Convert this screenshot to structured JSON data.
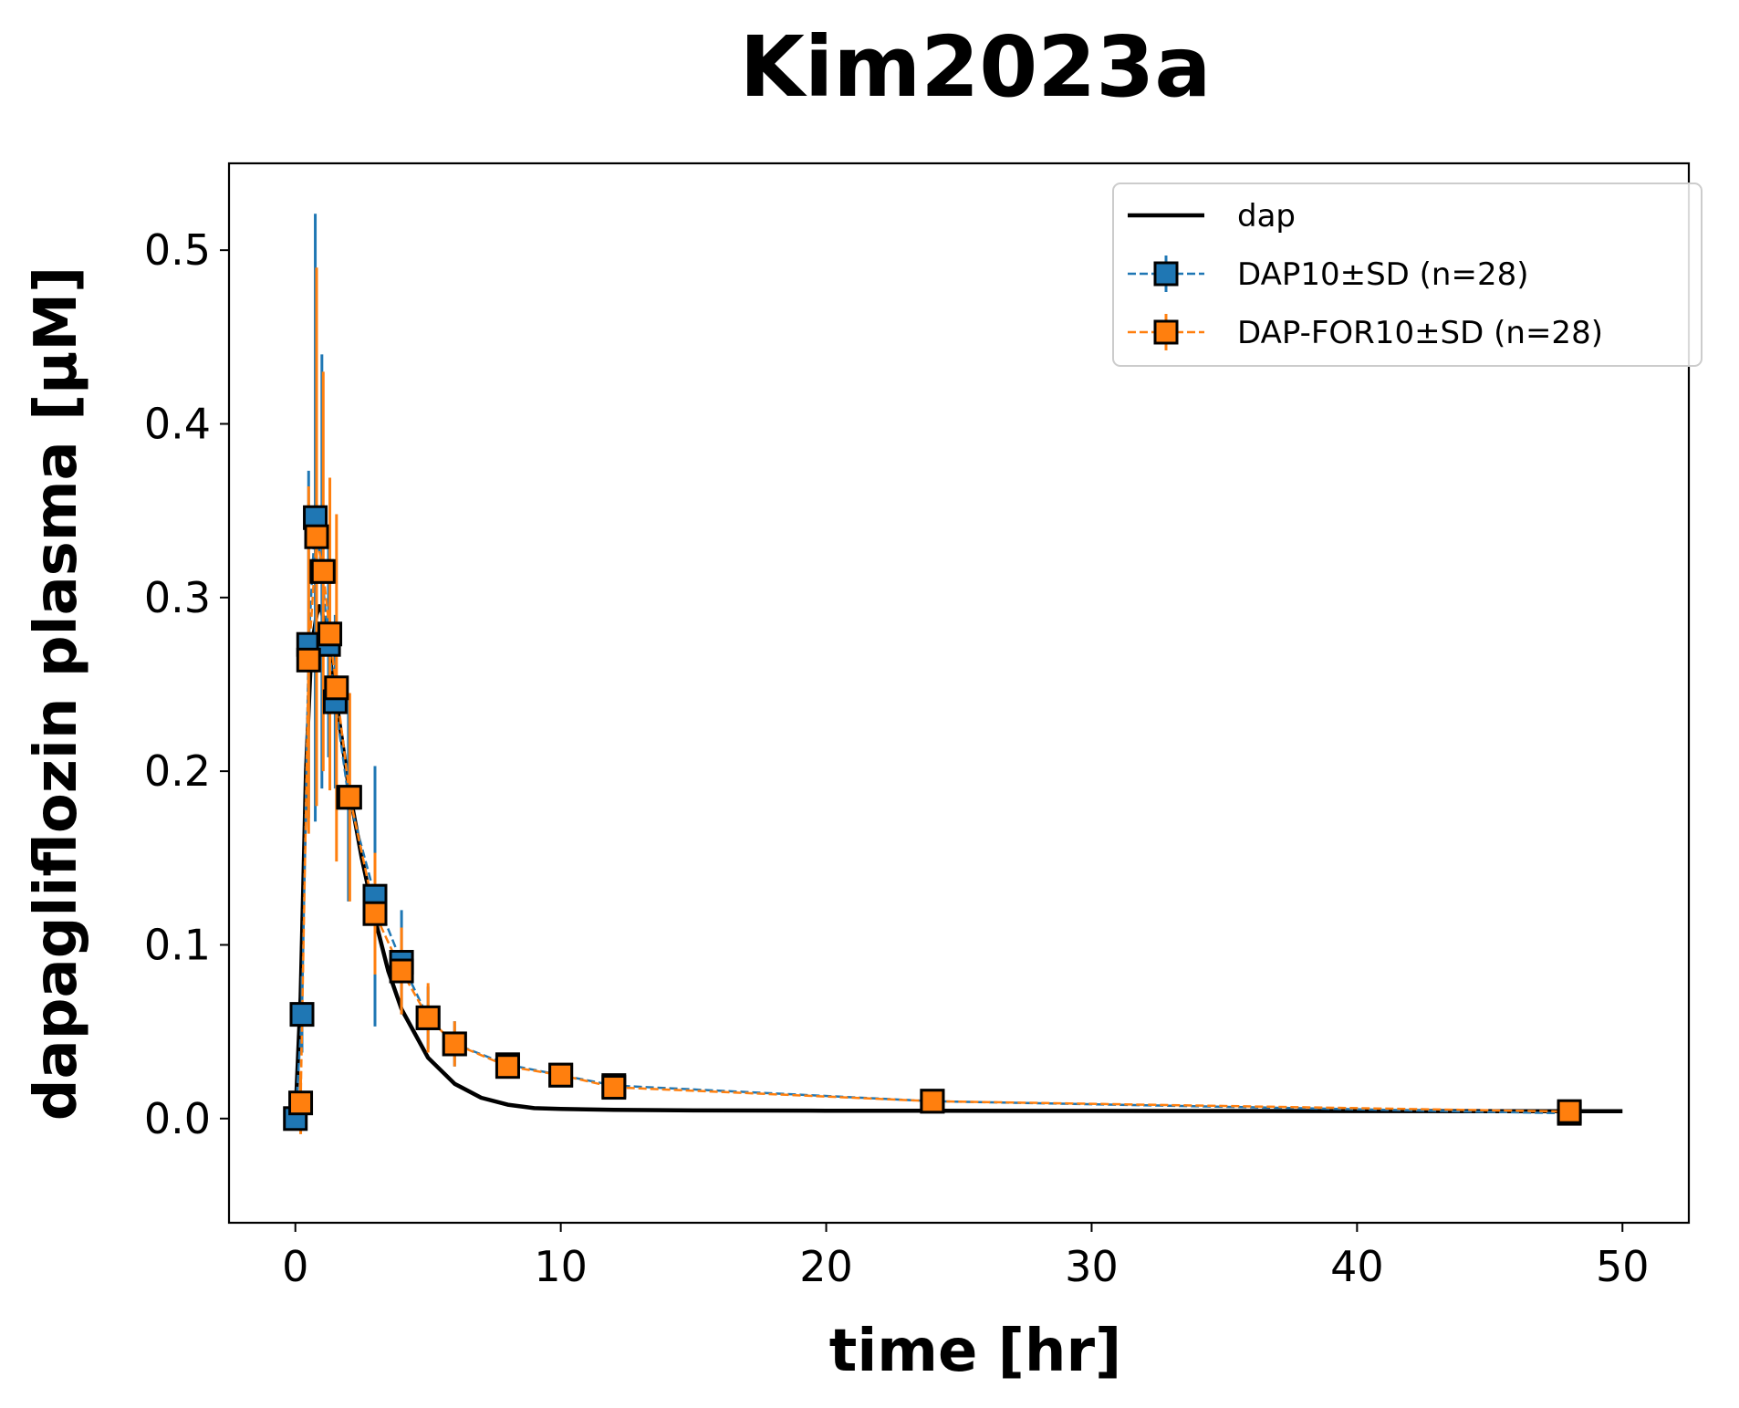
{
  "chart_data": {
    "type": "line",
    "title": "Kim2023a",
    "xlabel": "time [hr]",
    "ylabel": "dapagliflozin plasma [µM]",
    "xlim": [
      -2.5,
      52.5
    ],
    "ylim": [
      -0.06,
      0.55
    ],
    "xticks": [
      0,
      10,
      20,
      30,
      40,
      50
    ],
    "xtick_labels": [
      "0",
      "10",
      "20",
      "30",
      "40",
      "50"
    ],
    "yticks": [
      0.0,
      0.1,
      0.2,
      0.3,
      0.4,
      0.5
    ],
    "ytick_labels": [
      "0.0",
      "0.1",
      "0.2",
      "0.3",
      "0.4",
      "0.5"
    ],
    "grid": false,
    "legend_position": "top-right",
    "colors": {
      "dap": "#000000",
      "dap10": "#1f77b4",
      "dapfor10": "#ff7f0e",
      "marker_edge": "#000000"
    },
    "series": [
      {
        "name": "dap",
        "kind": "line",
        "x": [
          0,
          0.2,
          0.4,
          0.6,
          0.8,
          0.9,
          1.0,
          1.2,
          1.5,
          2.0,
          2.5,
          3.0,
          3.5,
          4.0,
          5.0,
          6.0,
          7.0,
          8.0,
          9.0,
          10.0,
          12.0,
          15.0,
          20.0,
          30.0,
          40.0,
          50.0
        ],
        "y": [
          0.0,
          0.07,
          0.2,
          0.27,
          0.29,
          0.295,
          0.292,
          0.275,
          0.245,
          0.192,
          0.15,
          0.115,
          0.085,
          0.063,
          0.035,
          0.02,
          0.012,
          0.008,
          0.006,
          0.0055,
          0.005,
          0.0047,
          0.0045,
          0.0044,
          0.0043,
          0.0042
        ]
      },
      {
        "name": "DAP10±SD (n=28)",
        "kind": "errorbar",
        "x": [
          0,
          0.25,
          0.5,
          0.75,
          1.0,
          1.25,
          1.5,
          2.0,
          3.0,
          4.0,
          5.0,
          6.0,
          8.0,
          10.0,
          12.0,
          24.0,
          48.0
        ],
        "y": [
          0.0,
          0.06,
          0.273,
          0.346,
          0.315,
          0.273,
          0.24,
          0.185,
          0.128,
          0.09,
          0.058,
          0.043,
          0.031,
          0.025,
          0.019,
          0.01,
          0.003
        ],
        "sd": [
          0.0,
          0.022,
          0.1,
          0.175,
          0.125,
          0.065,
          0.05,
          0.06,
          0.075,
          0.03,
          0.018,
          0.013,
          0.007,
          0.006,
          0.005,
          0.003,
          0.002
        ]
      },
      {
        "name": "DAP-FOR10±SD (n=28)",
        "kind": "errorbar",
        "x": [
          0.2,
          0.5,
          0.8,
          1.05,
          1.3,
          1.55,
          2.05,
          3.0,
          4.0,
          5.0,
          6.0,
          8.0,
          10.0,
          12.0,
          24.0,
          48.0
        ],
        "y": [
          0.009,
          0.264,
          0.335,
          0.315,
          0.279,
          0.248,
          0.185,
          0.118,
          0.085,
          0.058,
          0.043,
          0.03,
          0.025,
          0.018,
          0.01,
          0.004
        ],
        "sd": [
          0.018,
          0.1,
          0.155,
          0.115,
          0.09,
          0.1,
          0.06,
          0.035,
          0.025,
          0.02,
          0.013,
          0.007,
          0.006,
          0.005,
          0.003,
          0.002
        ]
      }
    ]
  }
}
